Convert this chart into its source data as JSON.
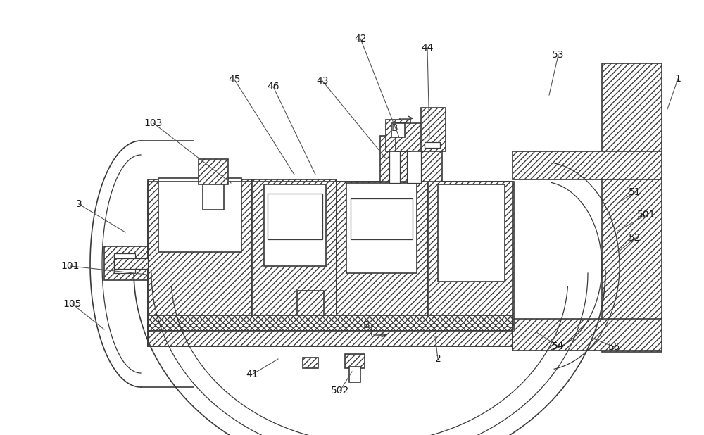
{
  "bg_color": "#ffffff",
  "lc": "#3a3a3a",
  "label_defs": [
    [
      "1",
      963,
      112,
      948,
      155
    ],
    [
      "2",
      622,
      510,
      618,
      478
    ],
    [
      "3",
      112,
      290,
      178,
      330
    ],
    [
      "41",
      358,
      532,
      395,
      510
    ],
    [
      "42",
      512,
      55,
      567,
      195
    ],
    [
      "43",
      458,
      115,
      548,
      225
    ],
    [
      "44",
      607,
      68,
      610,
      195
    ],
    [
      "45",
      333,
      113,
      418,
      248
    ],
    [
      "46",
      388,
      123,
      448,
      248
    ],
    [
      "51",
      902,
      273,
      878,
      288
    ],
    [
      "52",
      902,
      338,
      878,
      358
    ],
    [
      "53",
      793,
      78,
      780,
      135
    ],
    [
      "54",
      793,
      492,
      762,
      472
    ],
    [
      "55",
      873,
      493,
      840,
      480
    ],
    [
      "101",
      100,
      378,
      208,
      390
    ],
    [
      "103",
      218,
      175,
      328,
      260
    ],
    [
      "105",
      103,
      432,
      148,
      468
    ],
    [
      "501",
      918,
      305,
      878,
      328
    ],
    [
      "502",
      483,
      555,
      500,
      528
    ]
  ]
}
